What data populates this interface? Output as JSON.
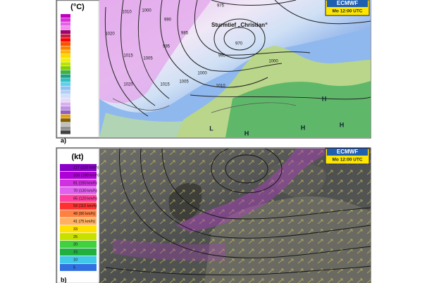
{
  "panels": [
    {
      "label": "a)",
      "legend_title": "(°C)",
      "badge": {
        "title": "ECMWF",
        "time": "Mo 12:00 UTC"
      },
      "storm_label": "Sturmtief „Christian“",
      "isobar_labels": [
        "1010",
        "1000",
        "990",
        "975",
        "1020",
        "985",
        "995",
        "1015",
        "1005",
        "970",
        "995",
        "1000",
        "1005",
        "1010",
        "1015",
        "1020",
        "1000"
      ],
      "pressure_markers": [
        "H",
        "L",
        "H",
        "H",
        "H"
      ]
    },
    {
      "label": "b)",
      "legend_title": "(kt)",
      "badge": {
        "title": "ECMWF",
        "time": "Mo 12:00 UTC"
      },
      "legend_labels": [
        "117 (220 km/h)",
        "103 (190 km/h)",
        "81 (150 km/h)",
        "70 (130 km/h)",
        "65 (120 km/h)",
        "59 (110 km/h)",
        "49 (90 km/h)",
        "41 (75 km/h)",
        "33",
        "25",
        "20",
        "15",
        "10",
        "5"
      ]
    }
  ]
}
